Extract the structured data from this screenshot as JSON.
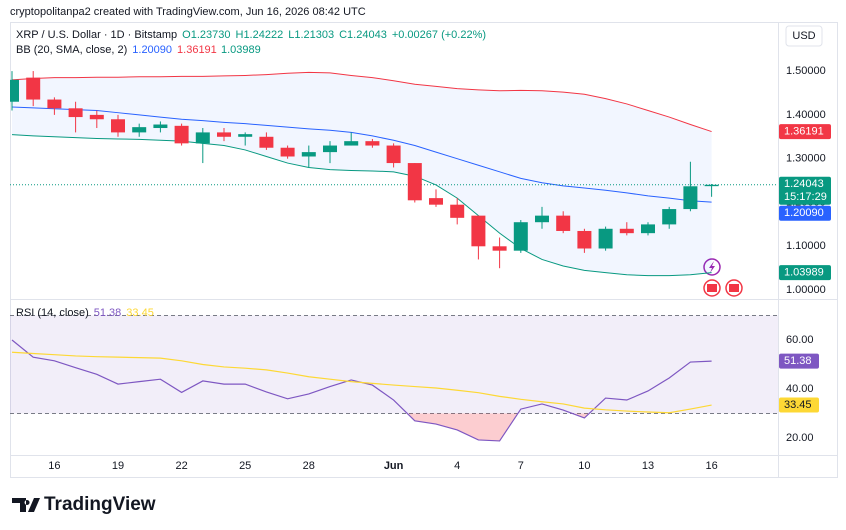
{
  "header": "cryptopolitanpa2 created with TradingView.com, Jun 16, 2026 08:42 UTC",
  "footer": {
    "brand": "TradingView"
  },
  "chart_data": {
    "type": "candlestick",
    "symbol": "XRP / U.S. Dollar · 1D · Bitstamp",
    "ohlc_legend": [
      "O1.23730",
      "H1.24222",
      "L1.21303",
      "C1.24043",
      "+0.00267 (+0.22%)"
    ],
    "currency": "USD",
    "categories": [
      null,
      null,
      "16",
      null,
      null,
      "19",
      null,
      null,
      "22",
      null,
      null,
      "25",
      null,
      null,
      "28",
      null,
      null,
      null,
      "Jun",
      null,
      null,
      "4",
      null,
      null,
      "7",
      null,
      null,
      "10",
      null,
      null,
      "13",
      null,
      null,
      "16"
    ],
    "open": [
      1.43,
      1.485,
      1.435,
      1.415,
      1.4,
      1.39,
      1.36,
      1.37,
      1.375,
      1.335,
      1.36,
      1.35,
      1.35,
      1.325,
      1.305,
      1.315,
      1.33,
      1.34,
      1.33,
      1.29,
      1.21,
      1.195,
      1.17,
      1.1,
      1.09,
      1.155,
      1.17,
      1.135,
      1.095,
      1.14,
      1.13,
      1.15,
      1.185,
      1.2373
    ],
    "high": [
      1.5,
      1.5,
      1.44,
      1.43,
      1.41,
      1.4,
      1.38,
      1.385,
      1.38,
      1.37,
      1.37,
      1.36,
      1.36,
      1.33,
      1.33,
      1.34,
      1.36,
      1.345,
      1.335,
      1.29,
      1.23,
      1.21,
      1.17,
      1.12,
      1.16,
      1.19,
      1.18,
      1.14,
      1.145,
      1.155,
      1.155,
      1.19,
      1.293,
      1.24222
    ],
    "low": [
      1.41,
      1.42,
      1.4,
      1.36,
      1.37,
      1.35,
      1.35,
      1.36,
      1.33,
      1.29,
      1.34,
      1.33,
      1.32,
      1.3,
      1.28,
      1.29,
      1.33,
      1.325,
      1.28,
      1.2,
      1.19,
      1.15,
      1.07,
      1.05,
      1.085,
      1.14,
      1.13,
      1.085,
      1.09,
      1.125,
      1.125,
      1.14,
      1.18,
      1.21303
    ],
    "close": [
      1.48,
      1.435,
      1.415,
      1.395,
      1.39,
      1.36,
      1.372,
      1.378,
      1.335,
      1.36,
      1.35,
      1.356,
      1.325,
      1.305,
      1.315,
      1.33,
      1.34,
      1.33,
      1.29,
      1.205,
      1.195,
      1.165,
      1.1,
      1.09,
      1.155,
      1.17,
      1.135,
      1.095,
      1.14,
      1.13,
      1.15,
      1.185,
      1.237,
      1.24043
    ],
    "last_label": "1.24043",
    "countdown": "15:17:29",
    "up_color": "#089981",
    "down_color": "#f23645",
    "ylim": [
      0.982,
      1.612
    ],
    "yticks": [
      {
        "value": 1.0,
        "label": "1.00000"
      },
      {
        "value": 1.1,
        "label": "1.10000"
      },
      {
        "value": 1.2,
        "label": "1.20000"
      },
      {
        "value": 1.3,
        "label": "1.30000"
      },
      {
        "value": 1.4,
        "label": "1.40000"
      },
      {
        "value": 1.5,
        "label": "1.50000"
      }
    ],
    "grid": false,
    "bb": {
      "label": "BB (20, SMA, close, 2)",
      "fill": "#2962ff",
      "series": [
        {
          "color": "#2962ff",
          "value_label": "1.20090",
          "values": [
            1.418,
            1.416,
            1.414,
            1.412,
            1.41,
            1.405,
            1.4,
            1.395,
            1.39,
            1.387,
            1.383,
            1.38,
            1.376,
            1.372,
            1.368,
            1.365,
            1.36,
            1.352,
            1.342,
            1.33,
            1.315,
            1.3,
            1.285,
            1.27,
            1.255,
            1.245,
            1.238,
            1.233,
            1.228,
            1.222,
            1.215,
            1.21,
            1.204,
            1.2009
          ]
        },
        {
          "color": "#f23645",
          "value_label": "1.36191",
          "values": [
            1.48,
            1.483,
            1.485,
            1.485,
            1.486,
            1.486,
            1.487,
            1.487,
            1.488,
            1.488,
            1.489,
            1.49,
            1.492,
            1.495,
            1.497,
            1.496,
            1.49,
            1.485,
            1.478,
            1.47,
            1.465,
            1.46,
            1.457,
            1.455,
            1.456,
            1.455,
            1.452,
            1.447,
            1.437,
            1.425,
            1.41,
            1.395,
            1.378,
            1.36191
          ]
        },
        {
          "color": "#089981",
          "value_label": "1.03989",
          "values": [
            1.355,
            1.352,
            1.35,
            1.348,
            1.346,
            1.345,
            1.344,
            1.342,
            1.34,
            1.335,
            1.33,
            1.32,
            1.305,
            1.29,
            1.28,
            1.275,
            1.273,
            1.272,
            1.27,
            1.26,
            1.24,
            1.21,
            1.17,
            1.13,
            1.095,
            1.07,
            1.055,
            1.045,
            1.04,
            1.035,
            1.033,
            1.033,
            1.035,
            1.03989
          ]
        }
      ]
    },
    "rsi": {
      "label": "RSI (14, close)",
      "ylim": [
        13.06,
        76.33
      ],
      "yticks": [
        {
          "value": 20,
          "label": "20.00"
        },
        {
          "value": 40,
          "label": "40.00"
        },
        {
          "value": 60,
          "label": "60.00"
        }
      ],
      "bands": [
        30,
        70
      ],
      "band_color": "#7e57c2",
      "oversold_color": "#f23645",
      "series": [
        {
          "color": "#7e57c2",
          "value_label": "51.38",
          "values": [
            60,
            53,
            51.5,
            48.7,
            46,
            42,
            43,
            44,
            38.6,
            43.3,
            42,
            42,
            38.8,
            36,
            38,
            41,
            43.7,
            41.6,
            35.5,
            27,
            25.7,
            23.3,
            19.2,
            18.8,
            31.8,
            33.9,
            31.4,
            28.2,
            36.3,
            35.5,
            39.2,
            44.5,
            51,
            51.38
          ]
        },
        {
          "color": "#fdd835",
          "value_label": "33.45",
          "values": [
            55,
            54.5,
            54,
            53.5,
            53.2,
            53,
            52.8,
            52.6,
            51.5,
            50,
            49,
            48.5,
            47.8,
            46.5,
            45,
            44,
            43,
            42.3,
            41.6,
            41,
            40.4,
            39.5,
            38.5,
            37,
            35.8,
            34.8,
            33.9,
            32.2,
            31.5,
            31,
            30.6,
            30.3,
            31.8,
            33.45
          ]
        }
      ]
    }
  }
}
